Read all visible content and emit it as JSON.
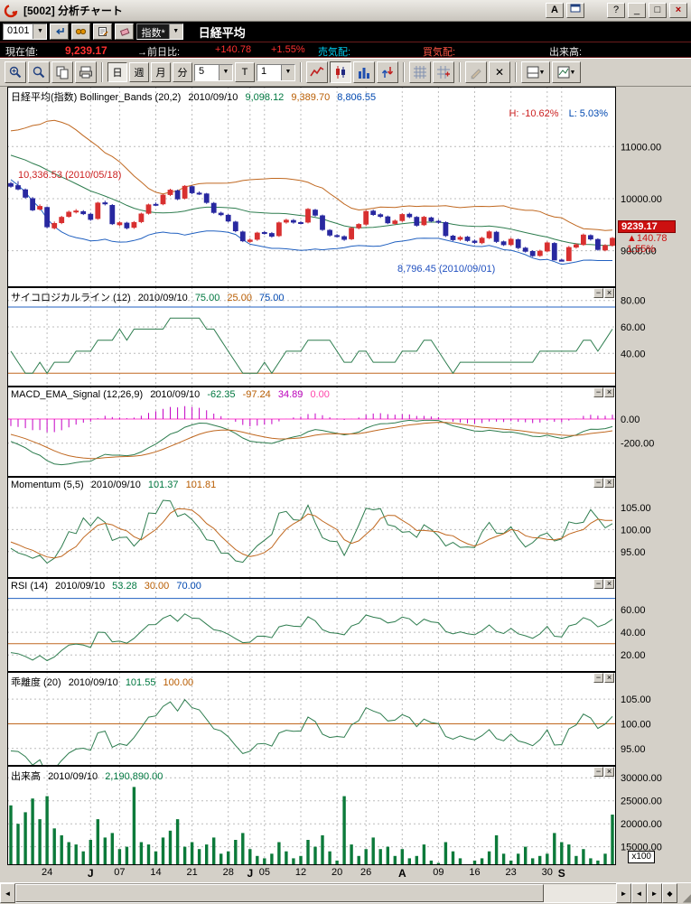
{
  "window": {
    "logo": "R",
    "title": "[5002] 分析チャート",
    "buttons": {
      "annotate": "A",
      "help": "?",
      "minimize": "_",
      "maximize": "□",
      "close": "×"
    }
  },
  "symbol_bar": {
    "code": "0101",
    "category": "指数*",
    "name": "日経平均"
  },
  "quote_bar": {
    "current_label": "現在値:",
    "current_value": "9,239.17",
    "prev_label": "→前日比:",
    "change": "+140.78",
    "change_pct": "+1.55%",
    "ask_label": "売気配:",
    "bid_label": "買気配:",
    "volume_label": "出来高:"
  },
  "toolbar": {
    "periods": [
      "日",
      "週",
      "月",
      "分"
    ],
    "active_period": "日",
    "bar_count": "5",
    "tick_button": "T",
    "tick_count": "1"
  },
  "icons": {
    "dropdown": "▼",
    "minimize_panel": "−",
    "close_panel": "×",
    "scroll_left": "◄",
    "scroll_right": "►",
    "nav_left": "◄",
    "nav_right": "►",
    "nav_end": "◆",
    "grip": "◢",
    "delete_x": "✕"
  },
  "xaxis": {
    "labels": [
      {
        "t": "24",
        "i": 5,
        "m": false
      },
      {
        "t": "J",
        "i": 11,
        "m": true
      },
      {
        "t": "07",
        "i": 15,
        "m": false
      },
      {
        "t": "14",
        "i": 20,
        "m": false
      },
      {
        "t": "21",
        "i": 25,
        "m": false
      },
      {
        "t": "28",
        "i": 30,
        "m": false
      },
      {
        "t": "J",
        "i": 33,
        "m": true
      },
      {
        "t": "05",
        "i": 35,
        "m": false
      },
      {
        "t": "12",
        "i": 40,
        "m": false
      },
      {
        "t": "20",
        "i": 45,
        "m": false
      },
      {
        "t": "26",
        "i": 49,
        "m": false
      },
      {
        "t": "A",
        "i": 54,
        "m": true
      },
      {
        "t": "09",
        "i": 59,
        "m": false
      },
      {
        "t": "16",
        "i": 64,
        "m": false
      },
      {
        "t": "23",
        "i": 69,
        "m": false
      },
      {
        "t": "30",
        "i": 74,
        "m": false
      },
      {
        "t": "S",
        "i": 76,
        "m": true
      }
    ]
  },
  "chart_data": [
    {
      "type": "candlestick",
      "name": "日経平均(指数) Bollinger_Bands (20,2)",
      "date": "2010/09/10",
      "values": [
        "9,098.12",
        "9,389.70",
        "8,806.55"
      ],
      "high_label": "H: -10.62%",
      "low_label": "L: 5.03%",
      "annotation_high": "10,336.53 (2010/05/18)",
      "annotation_low": "8,796.45 (2010/09/01)",
      "price_marker": {
        "price": "9239.17",
        "change": "▲140.78",
        "pct": "1.55%"
      },
      "ylim": [
        8300,
        12150
      ],
      "yticks": [
        11000,
        10000,
        9000
      ],
      "ytick_labels": [
        "11000.00",
        "10000.00",
        "9000.00"
      ],
      "hlines": [],
      "prior_closes": [
        11244,
        11282,
        11292,
        11168,
        11161,
        11102,
        11148,
        11090,
        10981,
        11057,
        10924,
        10900,
        10914,
        11012,
        10957,
        11090,
        11102,
        10996,
        10865,
        10891,
        10635,
        10695,
        10755,
        10645,
        10467,
        10462
      ],
      "candles": [
        [
          10290,
          10320,
          10210,
          10240
        ],
        [
          10250,
          10336,
          10160,
          10186
        ],
        [
          10170,
          10195,
          10000,
          10030
        ],
        [
          10000,
          10030,
          9760,
          9785
        ],
        [
          9800,
          9890,
          9770,
          9850
        ],
        [
          9830,
          9850,
          9430,
          9460
        ],
        [
          9440,
          9560,
          9410,
          9523
        ],
        [
          9540,
          9670,
          9510,
          9640
        ],
        [
          9660,
          9770,
          9635,
          9740
        ],
        [
          9745,
          9800,
          9715,
          9762
        ],
        [
          9750,
          9780,
          9685,
          9712
        ],
        [
          9700,
          9730,
          9575,
          9603
        ],
        [
          9620,
          9940,
          9595,
          9914
        ],
        [
          9920,
          9960,
          9870,
          9901
        ],
        [
          9870,
          9895,
          9495,
          9520
        ],
        [
          9500,
          9570,
          9470,
          9537
        ],
        [
          9530,
          9555,
          9410,
          9439
        ],
        [
          9450,
          9570,
          9420,
          9542
        ],
        [
          9560,
          9730,
          9530,
          9705
        ],
        [
          9720,
          9905,
          9695,
          9880
        ],
        [
          9890,
          9925,
          9855,
          9887
        ],
        [
          9900,
          10090,
          9875,
          10067
        ],
        [
          10080,
          10190,
          10050,
          10163
        ],
        [
          10150,
          10175,
          9970,
          9995
        ],
        [
          10010,
          10260,
          9985,
          10238
        ],
        [
          10230,
          10255,
          10085,
          10113
        ],
        [
          10105,
          10140,
          10070,
          10101
        ],
        [
          10090,
          10110,
          9900,
          9928
        ],
        [
          9910,
          9935,
          9710,
          9737
        ],
        [
          9720,
          9750,
          9665,
          9693
        ],
        [
          9680,
          9705,
          9545,
          9571
        ],
        [
          9550,
          9575,
          9355,
          9383
        ],
        [
          9360,
          9385,
          9165,
          9191
        ],
        [
          9180,
          9240,
          9150,
          9204
        ],
        [
          9220,
          9365,
          9190,
          9338
        ],
        [
          9350,
          9380,
          9310,
          9339
        ],
        [
          9330,
          9360,
          9250,
          9280
        ],
        [
          9290,
          9560,
          9265,
          9535
        ],
        [
          9550,
          9615,
          9520,
          9585
        ],
        [
          9580,
          9610,
          9520,
          9548
        ],
        [
          9540,
          9570,
          9505,
          9537
        ],
        [
          9550,
          9820,
          9525,
          9795
        ],
        [
          9780,
          9805,
          9655,
          9685
        ],
        [
          9670,
          9695,
          9380,
          9408
        ],
        [
          9390,
          9415,
          9270,
          9300
        ],
        [
          9290,
          9320,
          9250,
          9278
        ],
        [
          9270,
          9295,
          9190,
          9220
        ],
        [
          9230,
          9460,
          9205,
          9431
        ],
        [
          9440,
          9530,
          9410,
          9503
        ],
        [
          9510,
          9780,
          9475,
          9753
        ],
        [
          9760,
          9790,
          9670,
          9696
        ],
        [
          9690,
          9720,
          9630,
          9659
        ],
        [
          9650,
          9675,
          9510,
          9537
        ],
        [
          9525,
          9600,
          9495,
          9570
        ],
        [
          9580,
          9720,
          9550,
          9694
        ],
        [
          9700,
          9730,
          9625,
          9653
        ],
        [
          9640,
          9665,
          9460,
          9489
        ],
        [
          9500,
          9670,
          9475,
          9642
        ],
        [
          9630,
          9655,
          9545,
          9572
        ],
        [
          9565,
          9595,
          9520,
          9551
        ],
        [
          9540,
          9565,
          9265,
          9292
        ],
        [
          9280,
          9305,
          9185,
          9212
        ],
        [
          9220,
          9285,
          9190,
          9253
        ],
        [
          9260,
          9285,
          9170,
          9196
        ],
        [
          9185,
          9215,
          9130,
          9161
        ],
        [
          9155,
          9270,
          9125,
          9240
        ],
        [
          9250,
          9390,
          9225,
          9362
        ],
        [
          9355,
          9380,
          9150,
          9179
        ],
        [
          9170,
          9195,
          9090,
          9116
        ],
        [
          9120,
          9250,
          9095,
          9220
        ],
        [
          9210,
          9235,
          9030,
          9059
        ],
        [
          9050,
          9075,
          8965,
          8991
        ],
        [
          8985,
          9010,
          8880,
          8906
        ],
        [
          8910,
          9020,
          8885,
          8991
        ],
        [
          8995,
          9175,
          8970,
          9149
        ],
        [
          9140,
          9165,
          8815,
          8824
        ],
        [
          8820,
          8845,
          8796,
          8800
        ],
        [
          8810,
          9090,
          8805,
          9062
        ],
        [
          9070,
          9145,
          9040,
          9114
        ],
        [
          9120,
          9330,
          9095,
          9301
        ],
        [
          9290,
          9315,
          9195,
          9226
        ],
        [
          9215,
          9240,
          9000,
          9024
        ],
        [
          9015,
          9125,
          8990,
          9098
        ],
        [
          9105,
          9265,
          9080,
          9239
        ]
      ]
    },
    {
      "type": "psychological",
      "name": "サイコロジカルライン (12)",
      "date": "2010/09/10",
      "values": [
        "75.00",
        "25.00",
        "75.00"
      ],
      "ylim": [
        15,
        90
      ],
      "yticks": [
        80,
        60,
        40
      ],
      "ytick_labels": [
        "80.00",
        "60.00",
        "40.00"
      ],
      "hlines": [
        {
          "v": 75,
          "color": "blue"
        },
        {
          "v": 25,
          "color": "orange"
        }
      ]
    },
    {
      "type": "macd",
      "name": "MACD_EMA_Signal (12,26,9)",
      "date": "2010/09/10",
      "values": [
        "-62.35",
        "-97.24",
        "34.89",
        "0.00"
      ],
      "ylim": [
        -480,
        270
      ],
      "yticks": [
        0,
        -200
      ],
      "ytick_labels": [
        "0.00",
        "-200.00"
      ],
      "hlines": [
        {
          "v": 0,
          "color": "pink"
        }
      ]
    },
    {
      "type": "momentum",
      "name": "Momentum (5,5)",
      "date": "2010/09/10",
      "values": [
        "101.37",
        "101.81"
      ],
      "ylim": [
        89,
        112
      ],
      "yticks": [
        105,
        100,
        95
      ],
      "ytick_labels": [
        "105.00",
        "100.00",
        "95.00"
      ],
      "hlines": []
    },
    {
      "type": "rsi",
      "name": "RSI (14)",
      "date": "2010/09/10",
      "values": [
        "53.28",
        "30.00",
        "70.00"
      ],
      "ylim": [
        5,
        88
      ],
      "yticks": [
        60,
        40,
        20
      ],
      "ytick_labels": [
        "60.00",
        "40.00",
        "20.00"
      ],
      "hlines": [
        {
          "v": 70,
          "color": "blue"
        },
        {
          "v": 30,
          "color": "orange"
        }
      ]
    },
    {
      "type": "deviation",
      "name": "乖離度 (20)",
      "date": "2010/09/10",
      "values": [
        "101.55",
        "100.00"
      ],
      "ylim": [
        91.5,
        110.5
      ],
      "yticks": [
        105,
        100,
        95
      ],
      "ytick_labels": [
        "105.00",
        "100.00",
        "95.00"
      ],
      "hlines": [
        {
          "v": 100,
          "color": "orange"
        }
      ]
    },
    {
      "type": "volume-bars",
      "name": "出来高",
      "date": "2010/09/10",
      "values": [
        "2,190,890.00"
      ],
      "unit": "x100",
      "ylim": [
        11000,
        32600
      ],
      "yticks": [
        30000,
        25000,
        20000,
        15000
      ],
      "ytick_labels": [
        "30000.00",
        "25000.00",
        "20000.00",
        "15000.00"
      ],
      "hlines": [],
      "volumes": [
        24000,
        20000,
        22500,
        25500,
        21000,
        26000,
        19000,
        17500,
        16000,
        15500,
        14000,
        16500,
        21000,
        17000,
        18000,
        14500,
        15000,
        28000,
        16000,
        15500,
        14000,
        17000,
        18500,
        21000,
        15000,
        16000,
        14500,
        15500,
        17000,
        13500,
        14000,
        16500,
        18000,
        14500,
        13000,
        12500,
        13500,
        16000,
        14000,
        12500,
        13000,
        16500,
        15000,
        17500,
        14000,
        12000,
        26000,
        15500,
        13000,
        14500,
        17000,
        14500,
        15000,
        13000,
        14500,
        12500,
        13000,
        15500,
        12000,
        11500,
        16000,
        14000,
        12500,
        11000,
        12000,
        12500,
        14000,
        17500,
        13500,
        12000,
        13500,
        15000,
        12500,
        13000,
        13500,
        18000,
        16000,
        15500,
        13000,
        14500,
        12500,
        12000,
        13500,
        22000
      ]
    }
  ]
}
